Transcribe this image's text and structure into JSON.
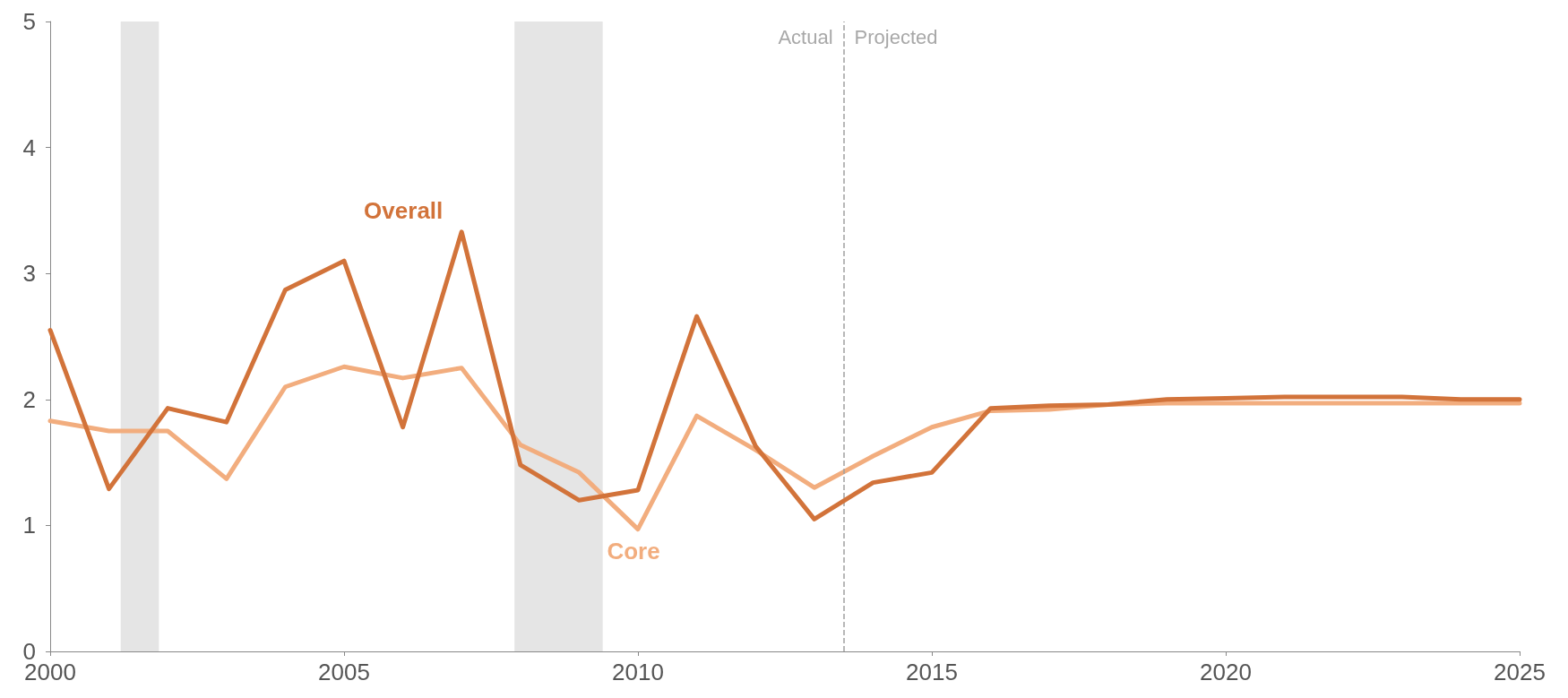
{
  "chart_data": {
    "type": "line",
    "x": [
      2000,
      2001,
      2002,
      2003,
      2004,
      2005,
      2006,
      2007,
      2008,
      2009,
      2010,
      2011,
      2012,
      2013,
      2014,
      2015,
      2016,
      2017,
      2018,
      2019,
      2020,
      2021,
      2022,
      2023,
      2024,
      2025
    ],
    "series": [
      {
        "name": "Overall",
        "color": "#d2733a",
        "values": [
          2.55,
          1.29,
          1.93,
          1.82,
          2.87,
          3.1,
          1.78,
          3.33,
          1.48,
          1.2,
          1.28,
          2.66,
          1.63,
          1.05,
          1.34,
          1.42,
          1.93,
          1.95,
          1.96,
          2.0,
          2.01,
          2.02,
          2.02,
          2.02,
          2.0,
          2.0
        ]
      },
      {
        "name": "Core",
        "color": "#f2ad7e",
        "values": [
          1.83,
          1.75,
          1.75,
          1.37,
          2.1,
          2.26,
          2.17,
          2.25,
          1.64,
          1.42,
          0.97,
          1.87,
          1.6,
          1.3,
          1.55,
          1.78,
          1.91,
          1.92,
          1.96,
          1.97,
          1.97,
          1.97,
          1.97,
          1.97,
          1.97,
          1.97
        ]
      }
    ],
    "xlim": [
      2000,
      2025
    ],
    "xticks": [
      2000,
      2005,
      2010,
      2015,
      2020,
      2025
    ],
    "ylim": [
      0,
      5
    ],
    "yticks": [
      0,
      1,
      2,
      3,
      4,
      5
    ],
    "bands": [
      {
        "axis": "x",
        "from": 2001.2,
        "to": 2001.85,
        "color": "#e5e5e5"
      },
      {
        "axis": "x",
        "from": 2007.9,
        "to": 2009.4,
        "color": "#e5e5e5"
      }
    ],
    "ref_lines": [
      {
        "axis": "x",
        "value": 2013.5,
        "color": "#a0a0a0",
        "line_style": "dashed"
      }
    ],
    "annotations": [
      "Actual",
      "Projected"
    ],
    "grid": false,
    "legend": false,
    "marker": "none",
    "line_style": "solid"
  }
}
